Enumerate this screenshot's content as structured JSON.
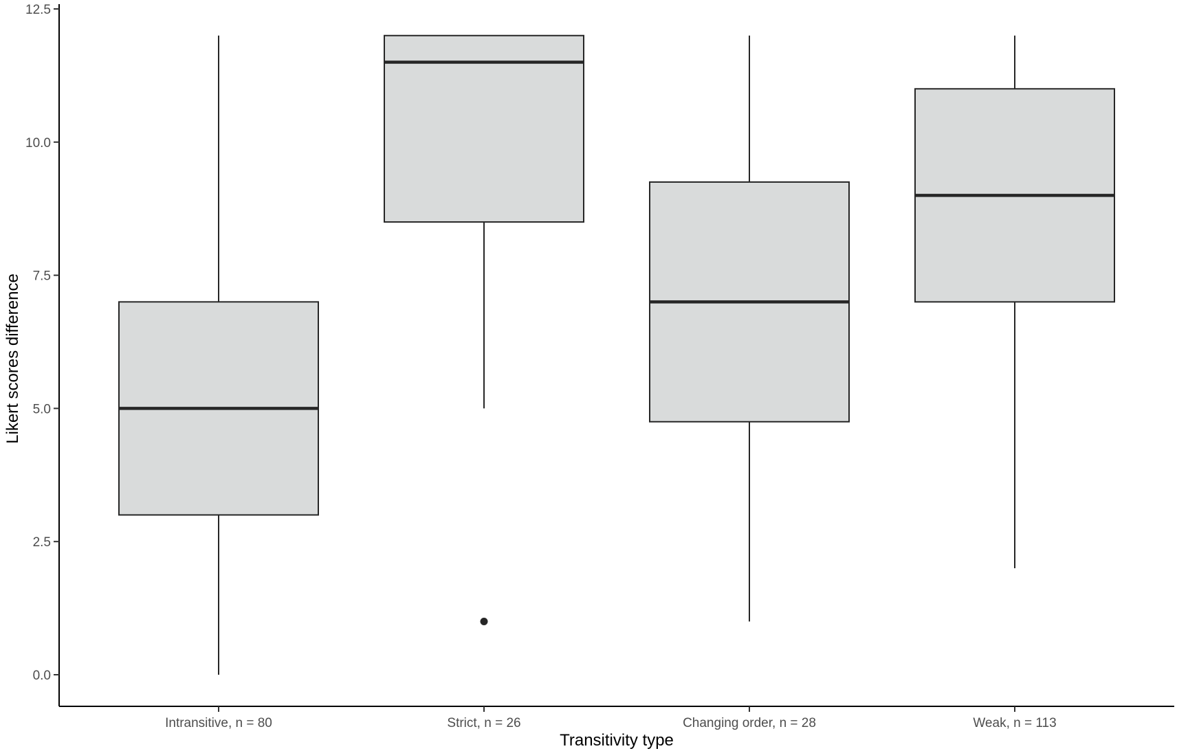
{
  "chart_data": {
    "type": "boxplot",
    "title": "",
    "xlabel": "Transitivity type",
    "ylabel": "Likert scores difference",
    "ylim": [
      -0.7,
      12.5
    ],
    "yticks": [
      "0.0",
      "2.5",
      "5.0",
      "7.5",
      "10.0",
      "12.5"
    ],
    "ytick_values": [
      0,
      2.5,
      5,
      7.5,
      10,
      12.5
    ],
    "grid": false,
    "legend": "none",
    "box_fill": "#d9dbdb",
    "line_color": "#262626",
    "categories": [
      "Intransitive, n = 80",
      "Strict, n = 26",
      "Changing order, n = 28",
      "Weak, n = 113"
    ],
    "boxes": [
      {
        "whisker_low": 0,
        "q1": 3,
        "median": 5,
        "q3": 7,
        "whisker_high": 12,
        "outliers": []
      },
      {
        "whisker_low": 5,
        "q1": 8.5,
        "median": 11.5,
        "q3": 12,
        "whisker_high": 12,
        "outliers": [
          1
        ]
      },
      {
        "whisker_low": 1,
        "q1": 4.75,
        "median": 7,
        "q3": 9.25,
        "whisker_high": 12,
        "outliers": []
      },
      {
        "whisker_low": 2,
        "q1": 7,
        "median": 9,
        "q3": 11,
        "whisker_high": 12,
        "outliers": []
      }
    ]
  }
}
